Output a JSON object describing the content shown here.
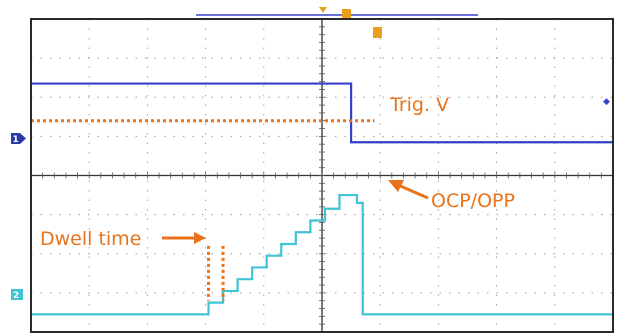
{
  "chart_data": {
    "type": "line",
    "title": "",
    "xlabel": "",
    "ylabel": "",
    "grid": true,
    "x_divisions": 10,
    "y_divisions": 8,
    "colors": {
      "channel_1": "#3340c8",
      "channel_2": "#3ec4d4",
      "annotation": "#e8731a",
      "grid": "#9a9a9a",
      "frame": "#2a2a2a",
      "marker_fill": "#2a3aa8",
      "trigger_marker": "#e8a020"
    },
    "channel_markers": {
      "ch1": "1",
      "ch2": "2",
      "trigger": "T"
    },
    "series": [
      {
        "channel": "1",
        "x": [
          0,
          5.5,
          5.5,
          10
        ],
        "y": [
          6.35,
          6.35,
          4.85,
          4.85
        ]
      },
      {
        "channel": "2",
        "x": [
          0,
          3.05,
          3.05,
          3.3,
          3.3,
          3.55,
          3.55,
          3.8,
          3.8,
          4.05,
          4.05,
          4.3,
          4.3,
          4.55,
          4.55,
          4.8,
          4.8,
          5.05,
          5.05,
          5.3,
          5.3,
          5.6,
          5.6,
          5.7,
          5.7,
          10
        ],
        "y": [
          0.45,
          0.45,
          0.75,
          0.75,
          1.05,
          1.05,
          1.35,
          1.35,
          1.65,
          1.65,
          1.95,
          1.95,
          2.25,
          2.25,
          2.55,
          2.55,
          2.85,
          2.85,
          3.15,
          3.15,
          3.5,
          3.5,
          3.3,
          3.3,
          0.45,
          0.45
        ]
      }
    ],
    "trigger_level_y": 5.4,
    "dwell_marker": {
      "x_start": 3.05,
      "x_end": 3.3,
      "y_low": 0.8,
      "y_high": 2.2
    },
    "annotations": {
      "trig": "Trig. V",
      "ocp": "OCP/OPP",
      "dwell": "Dwell time"
    }
  }
}
